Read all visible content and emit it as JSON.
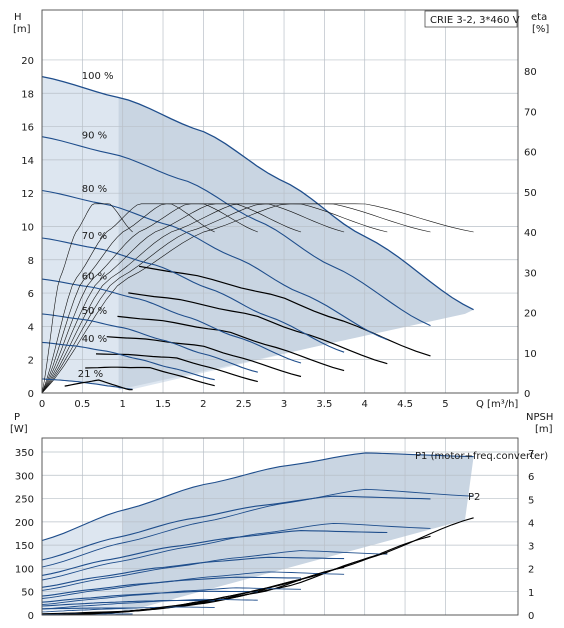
{
  "chart_data": [
    {
      "type": "line",
      "title_box": "CRIE 3-2, 3*460 V",
      "y_label_left": [
        "H",
        "[m]"
      ],
      "y_label_right": [
        "eta",
        "[%]"
      ],
      "x_label": "Q [m³/h]",
      "xlim": [
        0,
        5.9
      ],
      "x_ticks": [
        "0",
        "0.5",
        "1",
        "1.5",
        "2",
        "2.5",
        "3",
        "3.5",
        "4",
        "4.5",
        "5"
      ],
      "ylim_left": [
        0,
        23
      ],
      "y_ticks_left": [
        "0",
        "2",
        "4",
        "6",
        "8",
        "10",
        "12",
        "14",
        "16",
        "18",
        "20"
      ],
      "ylim_right": [
        0,
        80
      ],
      "y_ticks_right": [
        "0",
        "10",
        "20",
        "30",
        "40",
        "50",
        "60",
        "70",
        "80"
      ],
      "grid": true,
      "speed_labels": [
        "100 %",
        "90 %",
        "80 %",
        "70 %",
        "60 %",
        "50 %",
        "40 %",
        "21 %"
      ],
      "speeds": [
        1.0,
        0.9,
        0.8,
        0.7,
        0.6,
        0.5,
        0.4,
        0.21
      ],
      "head_curve_100pct": {
        "q": [
          0,
          1,
          2,
          3,
          4,
          5.35
        ],
        "h": [
          19.0,
          17.7,
          15.7,
          12.7,
          9.4,
          5.0
        ]
      },
      "efficiency_curve_100pct": {
        "q": [
          0,
          1,
          2,
          3,
          4,
          5.35
        ],
        "eta": [
          0,
          28,
          40,
          47,
          47,
          40
        ]
      }
    },
    {
      "type": "line",
      "y_label_left": [
        "P",
        "[W]"
      ],
      "y_label_right": [
        "NPSH",
        "[m]"
      ],
      "xlim": [
        0,
        5.9
      ],
      "ylim_left": [
        0,
        380
      ],
      "y_ticks_left": [
        "0",
        "50",
        "100",
        "150",
        "200",
        "250",
        "300",
        "350"
      ],
      "ylim_right": [
        0,
        7
      ],
      "y_ticks_right": [
        "0",
        "1",
        "2",
        "3",
        "4",
        "5",
        "6",
        "7"
      ],
      "grid": true,
      "series_labels": [
        "P1 (motor+freq.converter)",
        "P2"
      ],
      "power_curve_p1_100pct": {
        "q": [
          0,
          1,
          2,
          3,
          4,
          5.35
        ],
        "p": [
          160,
          225,
          280,
          320,
          348,
          340
        ]
      },
      "power_curve_p2_100pct": {
        "q": [
          0,
          1,
          2,
          3,
          4,
          5.35
        ],
        "p": [
          103,
          155,
          200,
          240,
          270,
          255
        ]
      },
      "npsh_curve_100pct": {
        "q": [
          0,
          1,
          2,
          3,
          4,
          5.35
        ],
        "npsh": [
          0.05,
          0.15,
          0.5,
          1.2,
          2.4,
          4.2
        ]
      }
    }
  ]
}
